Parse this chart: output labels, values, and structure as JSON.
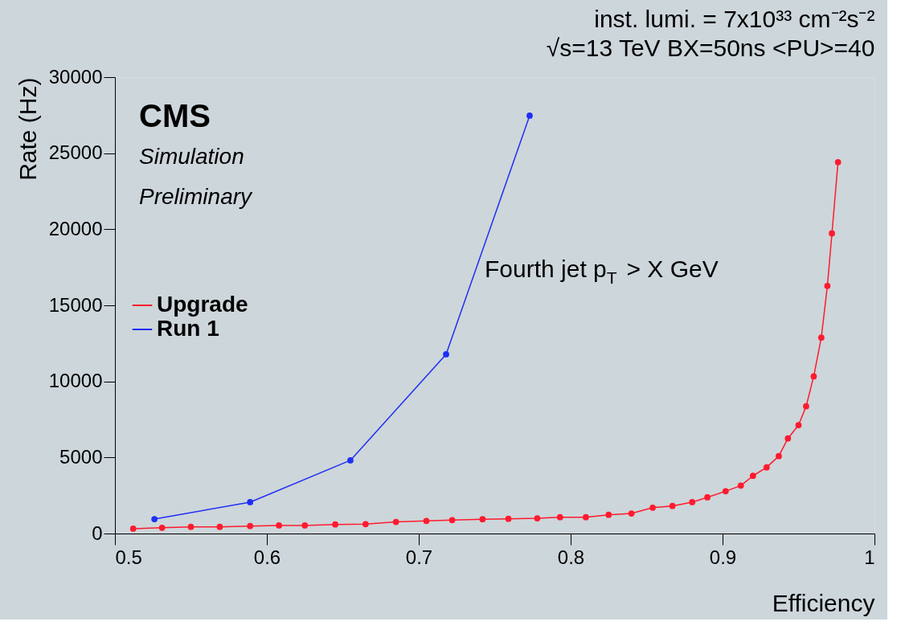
{
  "chart_data": {
    "type": "line",
    "title": "inst. lumi. = 7x10³³ cm⁻²s⁻²",
    "subtitle": "√s=13 TeV  BX=50ns  <PU>=40",
    "xlabel": "Efficiency",
    "ylabel": "Rate (Hz)",
    "annotations": [
      "CMS",
      "Simulation",
      "Preliminary",
      "Fourth jet p$_{T}$ > X GeV"
    ],
    "series": [
      {
        "name": "Upgrade",
        "color": "#ff1a2e",
        "x": [
          0.512,
          0.531,
          0.55,
          0.569,
          0.589,
          0.608,
          0.625,
          0.645,
          0.665,
          0.685,
          0.705,
          0.722,
          0.742,
          0.759,
          0.778,
          0.793,
          0.81,
          0.825,
          0.84,
          0.854,
          0.867,
          0.88,
          0.89,
          0.902,
          0.912,
          0.92,
          0.929,
          0.937,
          0.943,
          0.95,
          0.955,
          0.96,
          0.965,
          0.969,
          0.972,
          0.976
        ],
        "values": [
          320,
          380,
          440,
          440,
          490,
          530,
          530,
          600,
          620,
          760,
          830,
          880,
          940,
          970,
          1000,
          1070,
          1070,
          1230,
          1320,
          1700,
          1810,
          2060,
          2380,
          2780,
          3150,
          3790,
          4350,
          5090,
          6250,
          7130,
          8360,
          10330,
          12880,
          16280,
          19730,
          24410
        ]
      },
      {
        "name": "Run 1",
        "color": "#1f2ff5",
        "x": [
          0.526,
          0.589,
          0.655,
          0.718,
          0.773
        ],
        "values": [
          950,
          2060,
          4810,
          11780,
          27470
        ]
      }
    ],
    "xlim": [
      0.5,
      1
    ],
    "xticks": [
      0.5,
      0.6,
      0.7,
      0.8,
      0.9,
      1
    ],
    "ylim": [
      0,
      30000
    ],
    "yticks": [
      0,
      5000,
      10000,
      15000,
      20000,
      25000,
      30000
    ],
    "grid": false,
    "legend": "left",
    "marker": "circle",
    "line_style": "solid"
  }
}
